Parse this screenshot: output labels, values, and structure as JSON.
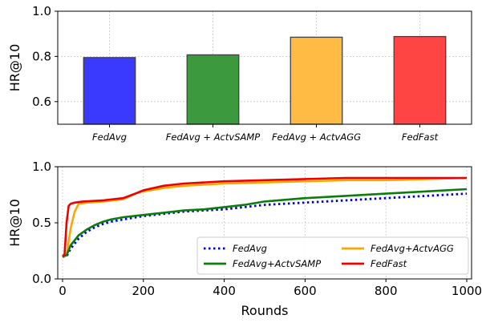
{
  "chart_data": [
    {
      "type": "bar",
      "categories": [
        "FedAvg",
        "FedAvg + ActvSAMP",
        "FedAvg + ActvAGG",
        "FedFast"
      ],
      "values": [
        0.795,
        0.807,
        0.885,
        0.888
      ],
      "colors": [
        "#3a3aff",
        "#3d993d",
        "#ffbb44",
        "#ff4444"
      ],
      "edge_color": "#404040",
      "ylabel": "HR@10",
      "ylim": [
        0.5,
        1.0
      ],
      "yticks": [
        "0.6",
        "0.8",
        "1.0"
      ],
      "ytick_values": [
        0.6,
        0.8,
        1.0
      ],
      "grid": true
    },
    {
      "type": "line",
      "xlabel": "Rounds",
      "ylabel": "HR@10",
      "xlim": [
        0,
        1000
      ],
      "ylim": [
        0.0,
        1.0
      ],
      "xticks": [
        "0",
        "200",
        "400",
        "600",
        "800",
        "1000"
      ],
      "xtick_values": [
        0,
        200,
        400,
        600,
        800,
        1000
      ],
      "yticks": [
        "0.0",
        "0.5",
        "1.0"
      ],
      "ytick_values": [
        0.0,
        0.5,
        1.0
      ],
      "grid": true,
      "legend_position": "lower-right",
      "series": [
        {
          "name": "FedAvg",
          "color": "#0000dd",
          "style": "dotted",
          "x": [
            0,
            10,
            20,
            40,
            60,
            80,
            100,
            120,
            150,
            200,
            250,
            300,
            350,
            400,
            450,
            500,
            600,
            700,
            800,
            900,
            1000
          ],
          "y": [
            0.2,
            0.2,
            0.27,
            0.36,
            0.42,
            0.46,
            0.49,
            0.51,
            0.53,
            0.56,
            0.58,
            0.6,
            0.61,
            0.62,
            0.64,
            0.66,
            0.68,
            0.7,
            0.72,
            0.74,
            0.76
          ]
        },
        {
          "name": "FedAvg+ActvAGG",
          "color": "#ffa500",
          "style": "solid",
          "x": [
            0,
            10,
            20,
            30,
            40,
            60,
            100,
            150,
            180,
            200,
            250,
            300,
            400,
            500,
            600,
            700,
            800,
            900,
            1000
          ],
          "y": [
            0.2,
            0.21,
            0.45,
            0.6,
            0.67,
            0.68,
            0.69,
            0.71,
            0.76,
            0.78,
            0.81,
            0.83,
            0.85,
            0.86,
            0.87,
            0.88,
            0.88,
            0.89,
            0.9
          ]
        },
        {
          "name": "FedAvg+ActvSAMP",
          "color": "#0a7d0a",
          "style": "solid",
          "x": [
            0,
            10,
            20,
            40,
            60,
            80,
            100,
            120,
            150,
            200,
            250,
            300,
            350,
            400,
            450,
            500,
            600,
            700,
            800,
            900,
            1000
          ],
          "y": [
            0.2,
            0.21,
            0.3,
            0.39,
            0.44,
            0.48,
            0.51,
            0.53,
            0.55,
            0.57,
            0.59,
            0.61,
            0.62,
            0.64,
            0.66,
            0.69,
            0.72,
            0.74,
            0.76,
            0.78,
            0.8
          ]
        },
        {
          "name": "FedFast",
          "color": "#ee0000",
          "style": "solid",
          "x": [
            0,
            5,
            10,
            15,
            20,
            30,
            50,
            100,
            150,
            180,
            200,
            250,
            300,
            400,
            500,
            600,
            700,
            800,
            900,
            1000
          ],
          "y": [
            0.2,
            0.22,
            0.5,
            0.65,
            0.67,
            0.68,
            0.69,
            0.7,
            0.72,
            0.76,
            0.79,
            0.83,
            0.85,
            0.87,
            0.88,
            0.89,
            0.9,
            0.9,
            0.9,
            0.9
          ]
        }
      ],
      "legend_order": [
        0,
        2,
        1,
        3
      ]
    }
  ]
}
